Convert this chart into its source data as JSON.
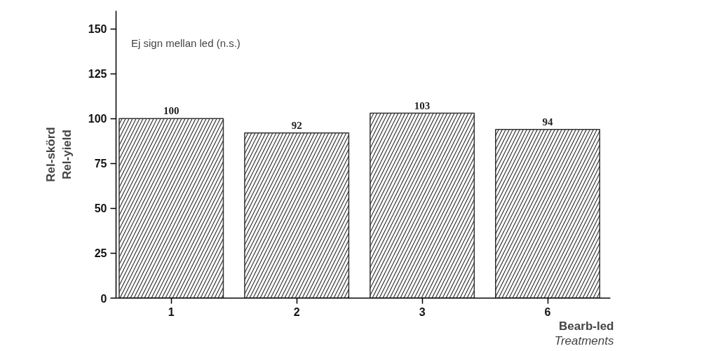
{
  "chart_data": {
    "type": "bar",
    "categories": [
      "1",
      "2",
      "3",
      "6"
    ],
    "values": [
      100,
      92,
      103,
      94
    ],
    "color": "#333333",
    "ylim": [
      0,
      160
    ],
    "yticks": [
      0,
      25,
      50,
      75,
      100,
      125,
      150
    ],
    "ylabel": "Rel-skörd\nRel-yield",
    "xlabel": "Bearb-led\nTreatments",
    "annotations": [
      "Ej sign mellan led (n.s.)"
    ],
    "data_labels": true,
    "grid": false
  }
}
